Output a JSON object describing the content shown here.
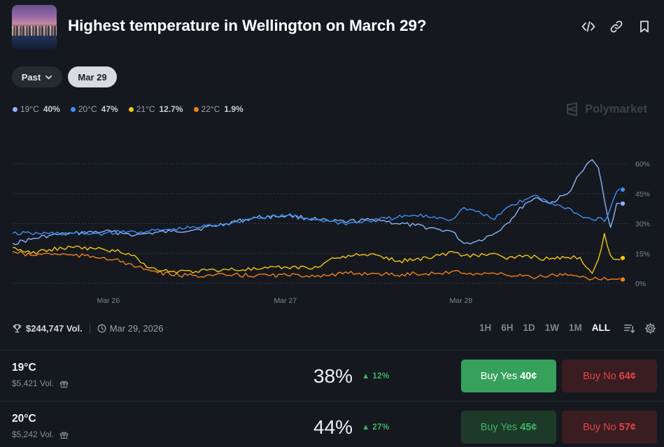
{
  "header": {
    "title": "Highest temperature in Wellington on March 29?"
  },
  "filters": {
    "past_label": "Past",
    "date_label": "Mar 29"
  },
  "legend": [
    {
      "label": "19°C",
      "pct": "40%",
      "color": "#8ab4f8"
    },
    {
      "label": "20°C",
      "pct": "47%",
      "color": "#3d8ff5"
    },
    {
      "label": "21°C",
      "pct": "12.7%",
      "color": "#f5c518"
    },
    {
      "label": "22°C",
      "pct": "1.9%",
      "color": "#f07f1f"
    }
  ],
  "brand": "Polymarket",
  "chart_data": {
    "type": "line",
    "x_ticks": [
      "Mar 26",
      "Mar 27",
      "Mar 28"
    ],
    "y_ticks": [
      "60%",
      "45%",
      "30%",
      "15%",
      "0%"
    ],
    "ylim": [
      0,
      60
    ],
    "x": [
      0,
      0.03,
      0.06,
      0.1,
      0.15,
      0.19,
      0.2,
      0.22,
      0.26,
      0.3,
      0.35,
      0.4,
      0.45,
      0.5,
      0.52,
      0.55,
      0.6,
      0.63,
      0.66,
      0.7,
      0.72,
      0.74,
      0.76,
      0.79,
      0.81,
      0.84,
      0.86,
      0.88,
      0.91,
      0.93,
      0.95,
      0.96,
      0.97,
      0.98,
      0.99,
      1.0
    ],
    "series": [
      {
        "name": "19°C",
        "color": "#8ab4f8",
        "values": [
          20,
          22,
          24,
          25,
          26,
          25,
          24,
          25,
          26,
          27,
          30,
          33,
          34,
          32,
          31,
          31,
          32,
          30,
          29,
          27,
          26,
          20,
          21,
          25,
          30,
          40,
          43,
          40,
          45,
          55,
          62,
          58,
          42,
          28,
          40,
          40
        ]
      },
      {
        "name": "20°C",
        "color": "#3d8ff5",
        "values": [
          25,
          25,
          25,
          25,
          25,
          26,
          26,
          26,
          27,
          28,
          30,
          33,
          34,
          32,
          31,
          30,
          32,
          33,
          34,
          33,
          32,
          38,
          36,
          32,
          38,
          42,
          44,
          40,
          38,
          34,
          32,
          33,
          31,
          38,
          46,
          47
        ]
      },
      {
        "name": "21°C",
        "color": "#f5c518",
        "values": [
          18,
          15,
          17,
          18,
          17,
          15,
          14,
          8,
          6,
          6,
          7,
          7,
          8,
          8,
          12,
          14,
          14,
          11,
          12,
          14,
          16,
          14,
          14,
          15,
          12,
          14,
          13,
          12,
          13,
          13,
          5,
          12,
          25,
          14,
          12,
          12.7
        ]
      },
      {
        "name": "22°C",
        "color": "#f07f1f",
        "values": [
          16,
          14,
          15,
          14,
          13,
          10,
          8,
          7,
          4,
          4,
          4,
          4,
          4,
          4,
          4,
          5,
          5,
          4,
          5,
          5,
          6,
          5,
          5,
          5,
          4,
          4,
          3,
          4,
          4,
          3,
          2,
          2,
          3,
          2,
          2,
          1.9
        ]
      }
    ]
  },
  "stats": {
    "volume": "$244,747 Vol.",
    "date": "Mar 29, 2026"
  },
  "ranges": [
    "1H",
    "6H",
    "1D",
    "1W",
    "1M",
    "ALL"
  ],
  "ranges_active": "ALL",
  "outcomes": [
    {
      "name": "19°C",
      "volume": "$5,421 Vol.",
      "probability": "38%",
      "change": "12%",
      "yes_label": "Buy Yes",
      "yes_price": "40¢",
      "no_label": "Buy No",
      "no_price": "64¢"
    },
    {
      "name": "20°C",
      "volume": "$5,242 Vol.",
      "probability": "44%",
      "change": "27%",
      "yes_label": "Buy Yes",
      "yes_price": "45¢",
      "no_label": "Buy No",
      "no_price": "57¢"
    }
  ],
  "colors": {
    "yes_bg": "#35a15b",
    "yes_text": "#ffffff",
    "yes_bg_dim": "#1d3a28",
    "yes_text_dim": "#3db465",
    "no_bg": "#3a1d21",
    "no_text": "#e0434a"
  }
}
